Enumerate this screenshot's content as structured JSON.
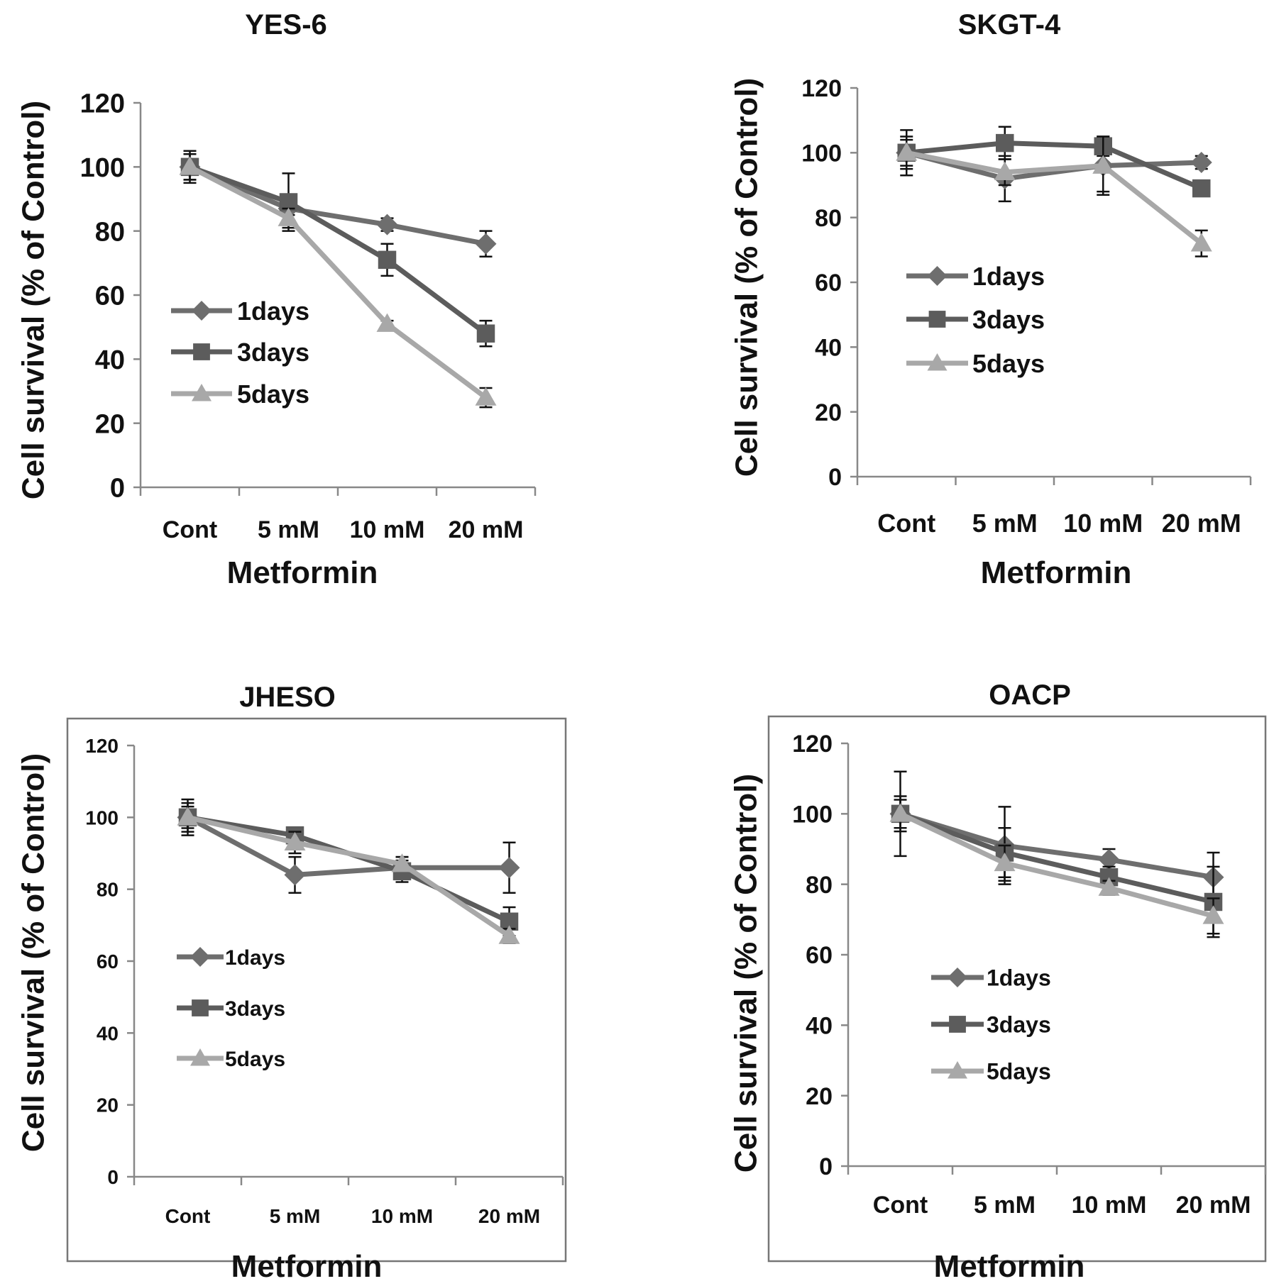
{
  "chart_data": [
    {
      "type": "line",
      "title": "YES-6",
      "xlabel": "Metformin",
      "ylabel": "Cell survival (% of Control)",
      "categories": [
        "Cont",
        "5 mM",
        "10 mM",
        "20 mM"
      ],
      "ylim": [
        0,
        120
      ],
      "yticks": [
        0,
        20,
        40,
        60,
        80,
        100,
        120
      ],
      "legend": "center-left",
      "series": [
        {
          "name": "1days",
          "marker": "diamond",
          "color": "#6e6e6e",
          "values": [
            100,
            87,
            82,
            76
          ],
          "errors": [
            5,
            2,
            2,
            4
          ]
        },
        {
          "name": "3days",
          "marker": "square",
          "color": "#5c5c5c",
          "values": [
            100,
            89,
            71,
            48
          ],
          "errors": [
            4,
            9,
            5,
            4
          ]
        },
        {
          "name": "5days",
          "marker": "triangle",
          "color": "#a8a8a8",
          "values": [
            100,
            84,
            51,
            28
          ],
          "errors": [
            4,
            3,
            1,
            3
          ]
        }
      ]
    },
    {
      "type": "line",
      "title": "SKGT-4",
      "xlabel": "Metformin",
      "ylabel": "Cell survival (% of Control)",
      "categories": [
        "Cont",
        "5 mM",
        "10 mM",
        "20 mM"
      ],
      "ylim": [
        0,
        120
      ],
      "yticks": [
        0,
        20,
        40,
        60,
        80,
        100,
        120
      ],
      "legend": "center-left",
      "series": [
        {
          "name": "1days",
          "marker": "diamond",
          "color": "#6e6e6e",
          "values": [
            100,
            92,
            96,
            97
          ],
          "errors": [
            7,
            7,
            8,
            2
          ]
        },
        {
          "name": "3days",
          "marker": "square",
          "color": "#5c5c5c",
          "values": [
            100,
            103,
            102,
            89
          ],
          "errors": [
            5,
            5,
            3,
            2
          ]
        },
        {
          "name": "5days",
          "marker": "triangle",
          "color": "#a8a8a8",
          "values": [
            100,
            94,
            96,
            72
          ],
          "errors": [
            4,
            4,
            9,
            4
          ]
        }
      ]
    },
    {
      "type": "line",
      "title": "JHESO",
      "xlabel": "Metformin",
      "ylabel": "Cell survival (% of Control)",
      "categories": [
        "Cont",
        "5 mM",
        "10 mM",
        "20 mM"
      ],
      "ylim": [
        0,
        120
      ],
      "yticks": [
        0,
        20,
        40,
        60,
        80,
        100,
        120
      ],
      "legend": "center-left",
      "series": [
        {
          "name": "1days",
          "marker": "diamond",
          "color": "#6e6e6e",
          "values": [
            100,
            84,
            86,
            86
          ],
          "errors": [
            5,
            5,
            3,
            7
          ]
        },
        {
          "name": "3days",
          "marker": "square",
          "color": "#5c5c5c",
          "values": [
            100,
            95,
            85,
            71
          ],
          "errors": [
            4,
            2,
            3,
            4
          ]
        },
        {
          "name": "5days",
          "marker": "triangle",
          "color": "#a8a8a8",
          "values": [
            100,
            93,
            87,
            67
          ],
          "errors": [
            3,
            3,
            2,
            2
          ]
        }
      ]
    },
    {
      "type": "line",
      "title": "OACP",
      "xlabel": "Metformin",
      "ylabel": "Cell survival (% of Control)",
      "categories": [
        "Cont",
        "5 mM",
        "10 mM",
        "20 mM"
      ],
      "ylim": [
        0,
        120
      ],
      "yticks": [
        0,
        20,
        40,
        60,
        80,
        100,
        120
      ],
      "legend": "center-left",
      "series": [
        {
          "name": "1days",
          "marker": "diamond",
          "color": "#6e6e6e",
          "values": [
            100,
            91,
            87,
            82
          ],
          "errors": [
            12,
            11,
            3,
            7
          ]
        },
        {
          "name": "3days",
          "marker": "square",
          "color": "#5c5c5c",
          "values": [
            100,
            89,
            82,
            75
          ],
          "errors": [
            5,
            7,
            3,
            10
          ]
        },
        {
          "name": "5days",
          "marker": "triangle",
          "color": "#a8a8a8",
          "values": [
            100,
            86,
            79,
            71
          ],
          "errors": [
            4,
            5,
            2,
            5
          ]
        }
      ]
    }
  ]
}
